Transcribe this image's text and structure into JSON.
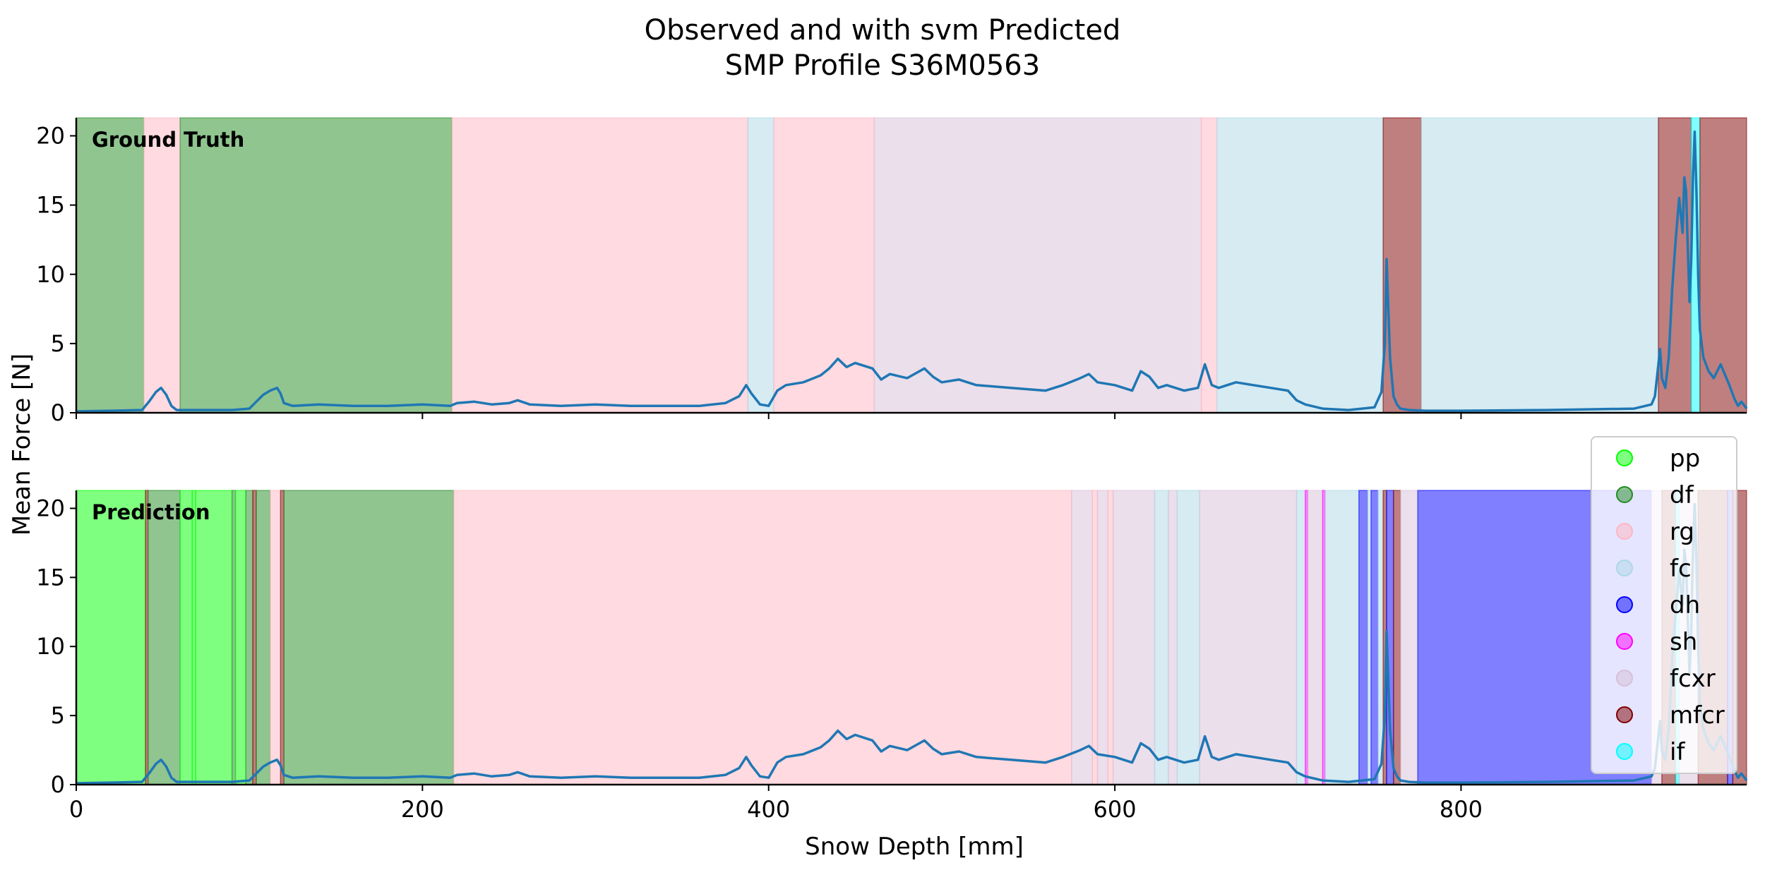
{
  "chart_data": {
    "type": "area",
    "title_lines": [
      "Observed and with svm Predicted",
      "SMP Profile S36M0563"
    ],
    "xlabel": "Snow Depth [mm]",
    "ylabel": "Mean Force [N]",
    "xlim": [
      0,
      965
    ],
    "ylim": [
      0,
      21.3
    ],
    "xticks": [
      0,
      200,
      400,
      600,
      800
    ],
    "yticks": [
      0,
      5,
      10,
      15,
      20
    ],
    "grid": false,
    "legend_position": "right",
    "classes": [
      {
        "name": "pp",
        "color": "#00ff00",
        "alpha": 0.5
      },
      {
        "name": "df",
        "color": "#228b22",
        "alpha": 0.5
      },
      {
        "name": "rg",
        "color": "#ffb6c1",
        "alpha": 0.5
      },
      {
        "name": "fc",
        "color": "#add8e6",
        "alpha": 0.5
      },
      {
        "name": "dh",
        "color": "#0000ff",
        "alpha": 0.5
      },
      {
        "name": "sh",
        "color": "#ff00ff",
        "alpha": 0.5
      },
      {
        "name": "fcxr",
        "color": "#d8bfd8",
        "alpha": 0.5
      },
      {
        "name": "mfcr",
        "color": "#800000",
        "alpha": 0.5
      },
      {
        "name": "if",
        "color": "#00ffff",
        "alpha": 0.5
      }
    ],
    "line_color": "#1f77b4",
    "panels": [
      {
        "label": "Ground Truth",
        "segments": [
          {
            "start": 0,
            "end": 39,
            "class": "df"
          },
          {
            "start": 39,
            "end": 60,
            "class": "rg"
          },
          {
            "start": 60,
            "end": 217,
            "class": "df"
          },
          {
            "start": 217,
            "end": 388,
            "class": "rg"
          },
          {
            "start": 388,
            "end": 403,
            "class": "fc"
          },
          {
            "start": 403,
            "end": 461,
            "class": "rg"
          },
          {
            "start": 461,
            "end": 650,
            "class": "fcxr"
          },
          {
            "start": 650,
            "end": 659,
            "class": "rg"
          },
          {
            "start": 659,
            "end": 755,
            "class": "fc"
          },
          {
            "start": 755,
            "end": 777,
            "class": "mfcr"
          },
          {
            "start": 777,
            "end": 914,
            "class": "fc"
          },
          {
            "start": 914,
            "end": 933,
            "class": "mfcr"
          },
          {
            "start": 933,
            "end": 938,
            "class": "if"
          },
          {
            "start": 938,
            "end": 965,
            "class": "mfcr"
          }
        ]
      },
      {
        "label": "Prediction",
        "segments": [
          {
            "start": 0,
            "end": 40,
            "class": "pp"
          },
          {
            "start": 40,
            "end": 41.5,
            "class": "mfcr"
          },
          {
            "start": 41.5,
            "end": 60,
            "class": "df"
          },
          {
            "start": 60,
            "end": 67,
            "class": "pp"
          },
          {
            "start": 67,
            "end": 69,
            "class": "pp"
          },
          {
            "start": 69,
            "end": 90,
            "class": "pp"
          },
          {
            "start": 90,
            "end": 92,
            "class": "df"
          },
          {
            "start": 92,
            "end": 98,
            "class": "pp"
          },
          {
            "start": 98,
            "end": 102,
            "class": "df"
          },
          {
            "start": 102,
            "end": 104,
            "class": "mfcr"
          },
          {
            "start": 104,
            "end": 112,
            "class": "df"
          },
          {
            "start": 112,
            "end": 118,
            "class": "rg"
          },
          {
            "start": 118,
            "end": 120,
            "class": "mfcr"
          },
          {
            "start": 120,
            "end": 218,
            "class": "df"
          },
          {
            "start": 218,
            "end": 575,
            "class": "rg"
          },
          {
            "start": 575,
            "end": 587,
            "class": "fcxr"
          },
          {
            "start": 587,
            "end": 590,
            "class": "rg"
          },
          {
            "start": 590,
            "end": 596,
            "class": "fcxr"
          },
          {
            "start": 596,
            "end": 599,
            "class": "rg"
          },
          {
            "start": 599,
            "end": 623,
            "class": "fcxr"
          },
          {
            "start": 623,
            "end": 631,
            "class": "fc"
          },
          {
            "start": 631,
            "end": 636,
            "class": "fcxr"
          },
          {
            "start": 636,
            "end": 649,
            "class": "fc"
          },
          {
            "start": 649,
            "end": 705,
            "class": "fcxr"
          },
          {
            "start": 705,
            "end": 710,
            "class": "fc"
          },
          {
            "start": 710,
            "end": 711.5,
            "class": "sh"
          },
          {
            "start": 711.5,
            "end": 720,
            "class": "fcxr"
          },
          {
            "start": 720,
            "end": 721.5,
            "class": "sh"
          },
          {
            "start": 721.5,
            "end": 741,
            "class": "fc"
          },
          {
            "start": 741,
            "end": 746,
            "class": "dh"
          },
          {
            "start": 746,
            "end": 748,
            "class": "fc"
          },
          {
            "start": 748,
            "end": 752,
            "class": "dh"
          },
          {
            "start": 752,
            "end": 755,
            "class": "fc"
          },
          {
            "start": 755,
            "end": 757,
            "class": "mfcr"
          },
          {
            "start": 757,
            "end": 761,
            "class": "dh"
          },
          {
            "start": 761,
            "end": 765,
            "class": "mfcr"
          },
          {
            "start": 765,
            "end": 775,
            "class": "fcxr"
          },
          {
            "start": 775,
            "end": 910,
            "class": "dh"
          },
          {
            "start": 910,
            "end": 916,
            "class": "fcxr"
          },
          {
            "start": 916,
            "end": 924,
            "class": "mfcr"
          },
          {
            "start": 924,
            "end": 926,
            "class": "if"
          },
          {
            "start": 926,
            "end": 937,
            "class": "fcxr"
          },
          {
            "start": 937,
            "end": 954,
            "class": "mfcr"
          },
          {
            "start": 954,
            "end": 957,
            "class": "dh"
          },
          {
            "start": 957,
            "end": 965,
            "class": "mfcr"
          }
        ]
      }
    ],
    "force_profile": {
      "x": [
        0,
        20,
        38,
        42,
        46,
        49,
        52,
        55,
        58,
        61,
        70,
        90,
        100,
        104,
        108,
        112,
        116,
        118,
        120,
        125,
        140,
        160,
        180,
        200,
        216,
        220,
        230,
        240,
        250,
        255,
        262,
        280,
        300,
        320,
        340,
        360,
        375,
        383,
        387,
        390,
        395,
        400,
        405,
        410,
        420,
        430,
        435,
        440,
        445,
        450,
        460,
        465,
        470,
        480,
        490,
        495,
        500,
        510,
        520,
        540,
        560,
        570,
        580,
        585,
        590,
        600,
        610,
        615,
        620,
        625,
        630,
        640,
        648,
        652,
        656,
        660,
        670,
        680,
        690,
        700,
        705,
        710,
        720,
        735,
        750,
        754,
        756,
        757,
        759,
        761,
        763,
        765,
        770,
        780,
        800,
        850,
        900,
        910,
        912,
        914,
        915,
        916,
        918,
        920,
        922,
        924,
        926,
        928,
        929,
        930,
        931,
        932,
        933,
        934,
        935,
        936,
        937,
        938,
        940,
        943,
        946,
        950,
        955,
        958,
        960,
        962,
        965
      ],
      "y": [
        0.1,
        0.15,
        0.2,
        0.8,
        1.5,
        1.8,
        1.3,
        0.5,
        0.2,
        0.2,
        0.2,
        0.2,
        0.3,
        0.8,
        1.3,
        1.6,
        1.8,
        1.4,
        0.7,
        0.5,
        0.6,
        0.5,
        0.5,
        0.6,
        0.5,
        0.7,
        0.8,
        0.6,
        0.7,
        0.9,
        0.6,
        0.5,
        0.6,
        0.5,
        0.5,
        0.5,
        0.7,
        1.2,
        2.0,
        1.4,
        0.6,
        0.5,
        1.6,
        2.0,
        2.2,
        2.7,
        3.2,
        3.9,
        3.3,
        3.6,
        3.2,
        2.4,
        2.8,
        2.5,
        3.2,
        2.6,
        2.2,
        2.4,
        2.0,
        1.8,
        1.6,
        2.0,
        2.5,
        2.8,
        2.2,
        2.0,
        1.6,
        3.0,
        2.6,
        1.8,
        2.0,
        1.6,
        1.8,
        3.5,
        2.0,
        1.8,
        2.2,
        2.0,
        1.8,
        1.6,
        0.9,
        0.6,
        0.3,
        0.2,
        0.4,
        1.5,
        5.0,
        11.1,
        4.0,
        1.2,
        0.6,
        0.3,
        0.2,
        0.15,
        0.15,
        0.2,
        0.3,
        0.6,
        1.2,
        3.5,
        4.6,
        2.5,
        1.8,
        4.0,
        9.0,
        12.5,
        15.5,
        13.0,
        17.0,
        16.0,
        12.0,
        8.0,
        11.0,
        17.0,
        20.3,
        16.0,
        10.0,
        6.0,
        4.0,
        3.0,
        2.5,
        3.5,
        2.0,
        1.0,
        0.5,
        0.8,
        0.3
      ]
    }
  }
}
